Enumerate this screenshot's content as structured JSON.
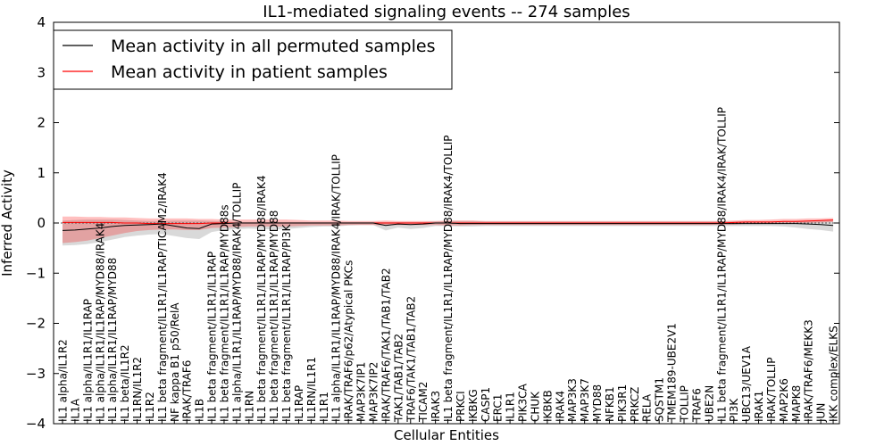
{
  "chart_data": {
    "type": "line",
    "title": "IL1-mediated signaling events -- 274 samples",
    "xlabel": "Cellular Entities",
    "ylabel": "Inferred Activity",
    "ylim": [
      -4,
      4
    ],
    "yticks": [
      -4,
      -3,
      -2,
      -1,
      0,
      1,
      2,
      3,
      4
    ],
    "ytick_labels": [
      "−4",
      "−3",
      "−2",
      "−1",
      "0",
      "1",
      "2",
      "3",
      "4"
    ],
    "legend_position": "top-left",
    "categories": [
      "IL1 alpha/IL1R2",
      "IL1A",
      "IL1 alpha/IL1R1/IL1RAP",
      "IL1 alpha/IL1R1/IL1RAP/MYD88/IRAK4",
      "IL1 alpha/IL1R1/IL1RAP/MYD88",
      "IL1 beta/IL1R2",
      "IL1RN/IL1R2",
      "IL1R2",
      "IL1 beta fragment/IL1R1/IL1RAP/TICAM2/IRAK4",
      "NF kappa B1 p50/RelA",
      "IRAK/TRAF6",
      "IL1B",
      "IL1 beta fragment/IL1R1/IL1RAP",
      "IL1 beta fragment/IL1R1/IL1RAP/MYD88s",
      "IL1 alpha/IL1R1/IL1RAP/MYD88/IRAK4/TOLLIP",
      "IL1RN",
      "IL1 beta fragment/IL1R1/IL1RAP/MYD88/IRAK4",
      "IL1 beta fragment/IL1R1/IL1RAP/MYD88",
      "IL1 beta fragment/IL1R1/IL1RAP/PI3K",
      "IL1RAP",
      "IL1RN/IL1R1",
      "IL1R1",
      "IL1 alpha/IL1R1/IL1RAP/MYD88/IRAK4/IRAK/TOLLIP",
      "IRAK/TRAF6/p62/Atypical PKCs",
      "MAP3K7IP1",
      "MAP3K7IP2",
      "IRAK/TRAF6/TAK1/TAB1/TAB2",
      "TAK1/TAB1/TAB2",
      "TRAF6/TAK1/TAB1/TAB2",
      "TICAM2",
      "IRAK3",
      "IL1 beta fragment/IL1R1/IL1RAP/MYD88/IRAK4/TOLLIP",
      "PRKCI",
      "IKBKG",
      "CASP1",
      "ERC1",
      "IL1R1",
      "PIK3CA",
      "CHUK",
      "IKBKB",
      "IRAK4",
      "MAP3K3",
      "MAP3K7",
      "MYD88",
      "NFKB1",
      "PIK3R1",
      "PRKCZ",
      "RELA",
      "SQSTM1",
      "TMEM189-UBE2V1",
      "TOLLIP",
      "TRAF6",
      "UBE2N",
      "IL1 beta fragment/IL1R1/IL1RAP/MYD88/IRAK4/IRAK/TOLLIP",
      "PI3K",
      "UBC13/UEV1A",
      "IRAK1",
      "IRAK/TOLLIP",
      "MAP2K6",
      "MAPK8",
      "IRAK/TRAF6/MEKK3",
      "JUN",
      "IKK complex/ELKS"
    ],
    "series": [
      {
        "name": "Mean activity in all permuted samples",
        "color": "#000000",
        "values": [
          -0.15,
          -0.14,
          -0.12,
          -0.1,
          -0.07,
          -0.05,
          -0.04,
          -0.03,
          -0.02,
          -0.06,
          -0.1,
          -0.11,
          -0.02,
          -0.01,
          0.0,
          0.0,
          0.0,
          0.0,
          0.0,
          0.0,
          0.0,
          0.0,
          0.0,
          0.0,
          0.0,
          0.0,
          -0.05,
          -0.02,
          -0.03,
          -0.02,
          0.0,
          0.0,
          -0.01,
          -0.01,
          -0.01,
          -0.01,
          -0.01,
          -0.01,
          -0.01,
          -0.01,
          -0.01,
          -0.01,
          -0.01,
          -0.01,
          -0.01,
          -0.01,
          -0.01,
          -0.01,
          -0.01,
          -0.01,
          -0.01,
          -0.01,
          -0.01,
          -0.01,
          -0.01,
          -0.01,
          -0.01,
          -0.01,
          -0.01,
          -0.01,
          -0.02,
          -0.03,
          -0.05
        ],
        "band_upper": [
          0.05,
          0.06,
          0.07,
          0.07,
          0.07,
          0.06,
          0.05,
          0.04,
          0.04,
          0.05,
          0.05,
          0.05,
          0.04,
          0.03,
          0.02,
          0.02,
          0.02,
          0.02,
          0.02,
          0.02,
          0.02,
          0.02,
          0.02,
          0.02,
          0.02,
          0.02,
          0.02,
          0.02,
          0.02,
          0.02,
          0.03,
          0.04,
          0.04,
          0.04,
          0.03,
          0.03,
          0.03,
          0.03,
          0.03,
          0.03,
          0.03,
          0.03,
          0.03,
          0.03,
          0.03,
          0.03,
          0.03,
          0.03,
          0.03,
          0.03,
          0.03,
          0.03,
          0.03,
          0.03,
          0.03,
          0.03,
          0.03,
          0.03,
          0.03,
          0.04,
          0.04,
          0.05,
          0.06
        ],
        "band_lower": [
          -0.45,
          -0.44,
          -0.42,
          -0.38,
          -0.33,
          -0.28,
          -0.25,
          -0.23,
          -0.22,
          -0.26,
          -0.3,
          -0.32,
          -0.18,
          -0.14,
          -0.12,
          -0.11,
          -0.12,
          -0.13,
          -0.12,
          -0.1,
          -0.08,
          -0.07,
          -0.07,
          -0.05,
          -0.04,
          -0.04,
          -0.15,
          -0.09,
          -0.12,
          -0.1,
          -0.06,
          -0.06,
          -0.07,
          -0.07,
          -0.06,
          -0.06,
          -0.06,
          -0.06,
          -0.06,
          -0.06,
          -0.06,
          -0.06,
          -0.06,
          -0.06,
          -0.06,
          -0.06,
          -0.06,
          -0.06,
          -0.06,
          -0.06,
          -0.06,
          -0.06,
          -0.06,
          -0.06,
          -0.06,
          -0.06,
          -0.06,
          -0.06,
          -0.07,
          -0.09,
          -0.12,
          -0.14,
          -0.17
        ]
      },
      {
        "name": "Mean activity in patient samples",
        "color": "#ff0000",
        "values": [
          0.01,
          0.01,
          0.01,
          0.01,
          0.01,
          0.0,
          0.0,
          -0.01,
          -0.01,
          -0.01,
          -0.01,
          -0.01,
          0.0,
          0.0,
          0.0,
          0.0,
          0.0,
          0.0,
          0.0,
          0.0,
          0.0,
          0.0,
          0.0,
          0.0,
          0.0,
          0.0,
          0.0,
          0.0,
          0.0,
          0.0,
          0.0,
          0.0,
          0.0,
          0.0,
          0.0,
          0.0,
          0.0,
          0.0,
          0.0,
          0.0,
          0.0,
          0.0,
          0.0,
          0.0,
          0.0,
          0.0,
          0.0,
          0.0,
          0.0,
          0.0,
          0.0,
          0.0,
          0.0,
          0.0,
          0.01,
          0.02,
          0.02,
          0.02,
          0.03,
          0.03,
          0.04,
          0.05,
          0.06
        ],
        "band_upper": [
          0.13,
          0.13,
          0.12,
          0.12,
          0.11,
          0.11,
          0.1,
          0.09,
          0.09,
          0.09,
          0.09,
          0.08,
          0.08,
          0.07,
          0.07,
          0.07,
          0.07,
          0.07,
          0.07,
          0.06,
          0.05,
          0.05,
          0.05,
          0.04,
          0.04,
          0.04,
          0.05,
          0.04,
          0.04,
          0.04,
          0.04,
          0.05,
          0.05,
          0.05,
          0.04,
          0.04,
          0.04,
          0.04,
          0.04,
          0.04,
          0.04,
          0.04,
          0.04,
          0.04,
          0.04,
          0.04,
          0.04,
          0.04,
          0.04,
          0.04,
          0.04,
          0.04,
          0.04,
          0.04,
          0.05,
          0.06,
          0.06,
          0.07,
          0.08,
          0.08,
          0.09,
          0.09,
          0.1
        ],
        "band_lower": [
          -0.4,
          -0.38,
          -0.35,
          -0.3,
          -0.25,
          -0.2,
          -0.16,
          -0.14,
          -0.13,
          -0.13,
          -0.14,
          -0.14,
          -0.1,
          -0.09,
          -0.08,
          -0.07,
          -0.07,
          -0.07,
          -0.07,
          -0.06,
          -0.05,
          -0.05,
          -0.05,
          -0.04,
          -0.04,
          -0.04,
          -0.05,
          -0.04,
          -0.04,
          -0.04,
          -0.04,
          -0.05,
          -0.05,
          -0.04,
          -0.04,
          -0.04,
          -0.04,
          -0.04,
          -0.04,
          -0.04,
          -0.04,
          -0.04,
          -0.04,
          -0.04,
          -0.04,
          -0.04,
          -0.04,
          -0.04,
          -0.04,
          -0.04,
          -0.04,
          -0.04,
          -0.04,
          -0.03,
          -0.03,
          -0.02,
          -0.02,
          -0.01,
          -0.01,
          0.0,
          0.0,
          0.01,
          0.02
        ]
      }
    ]
  }
}
